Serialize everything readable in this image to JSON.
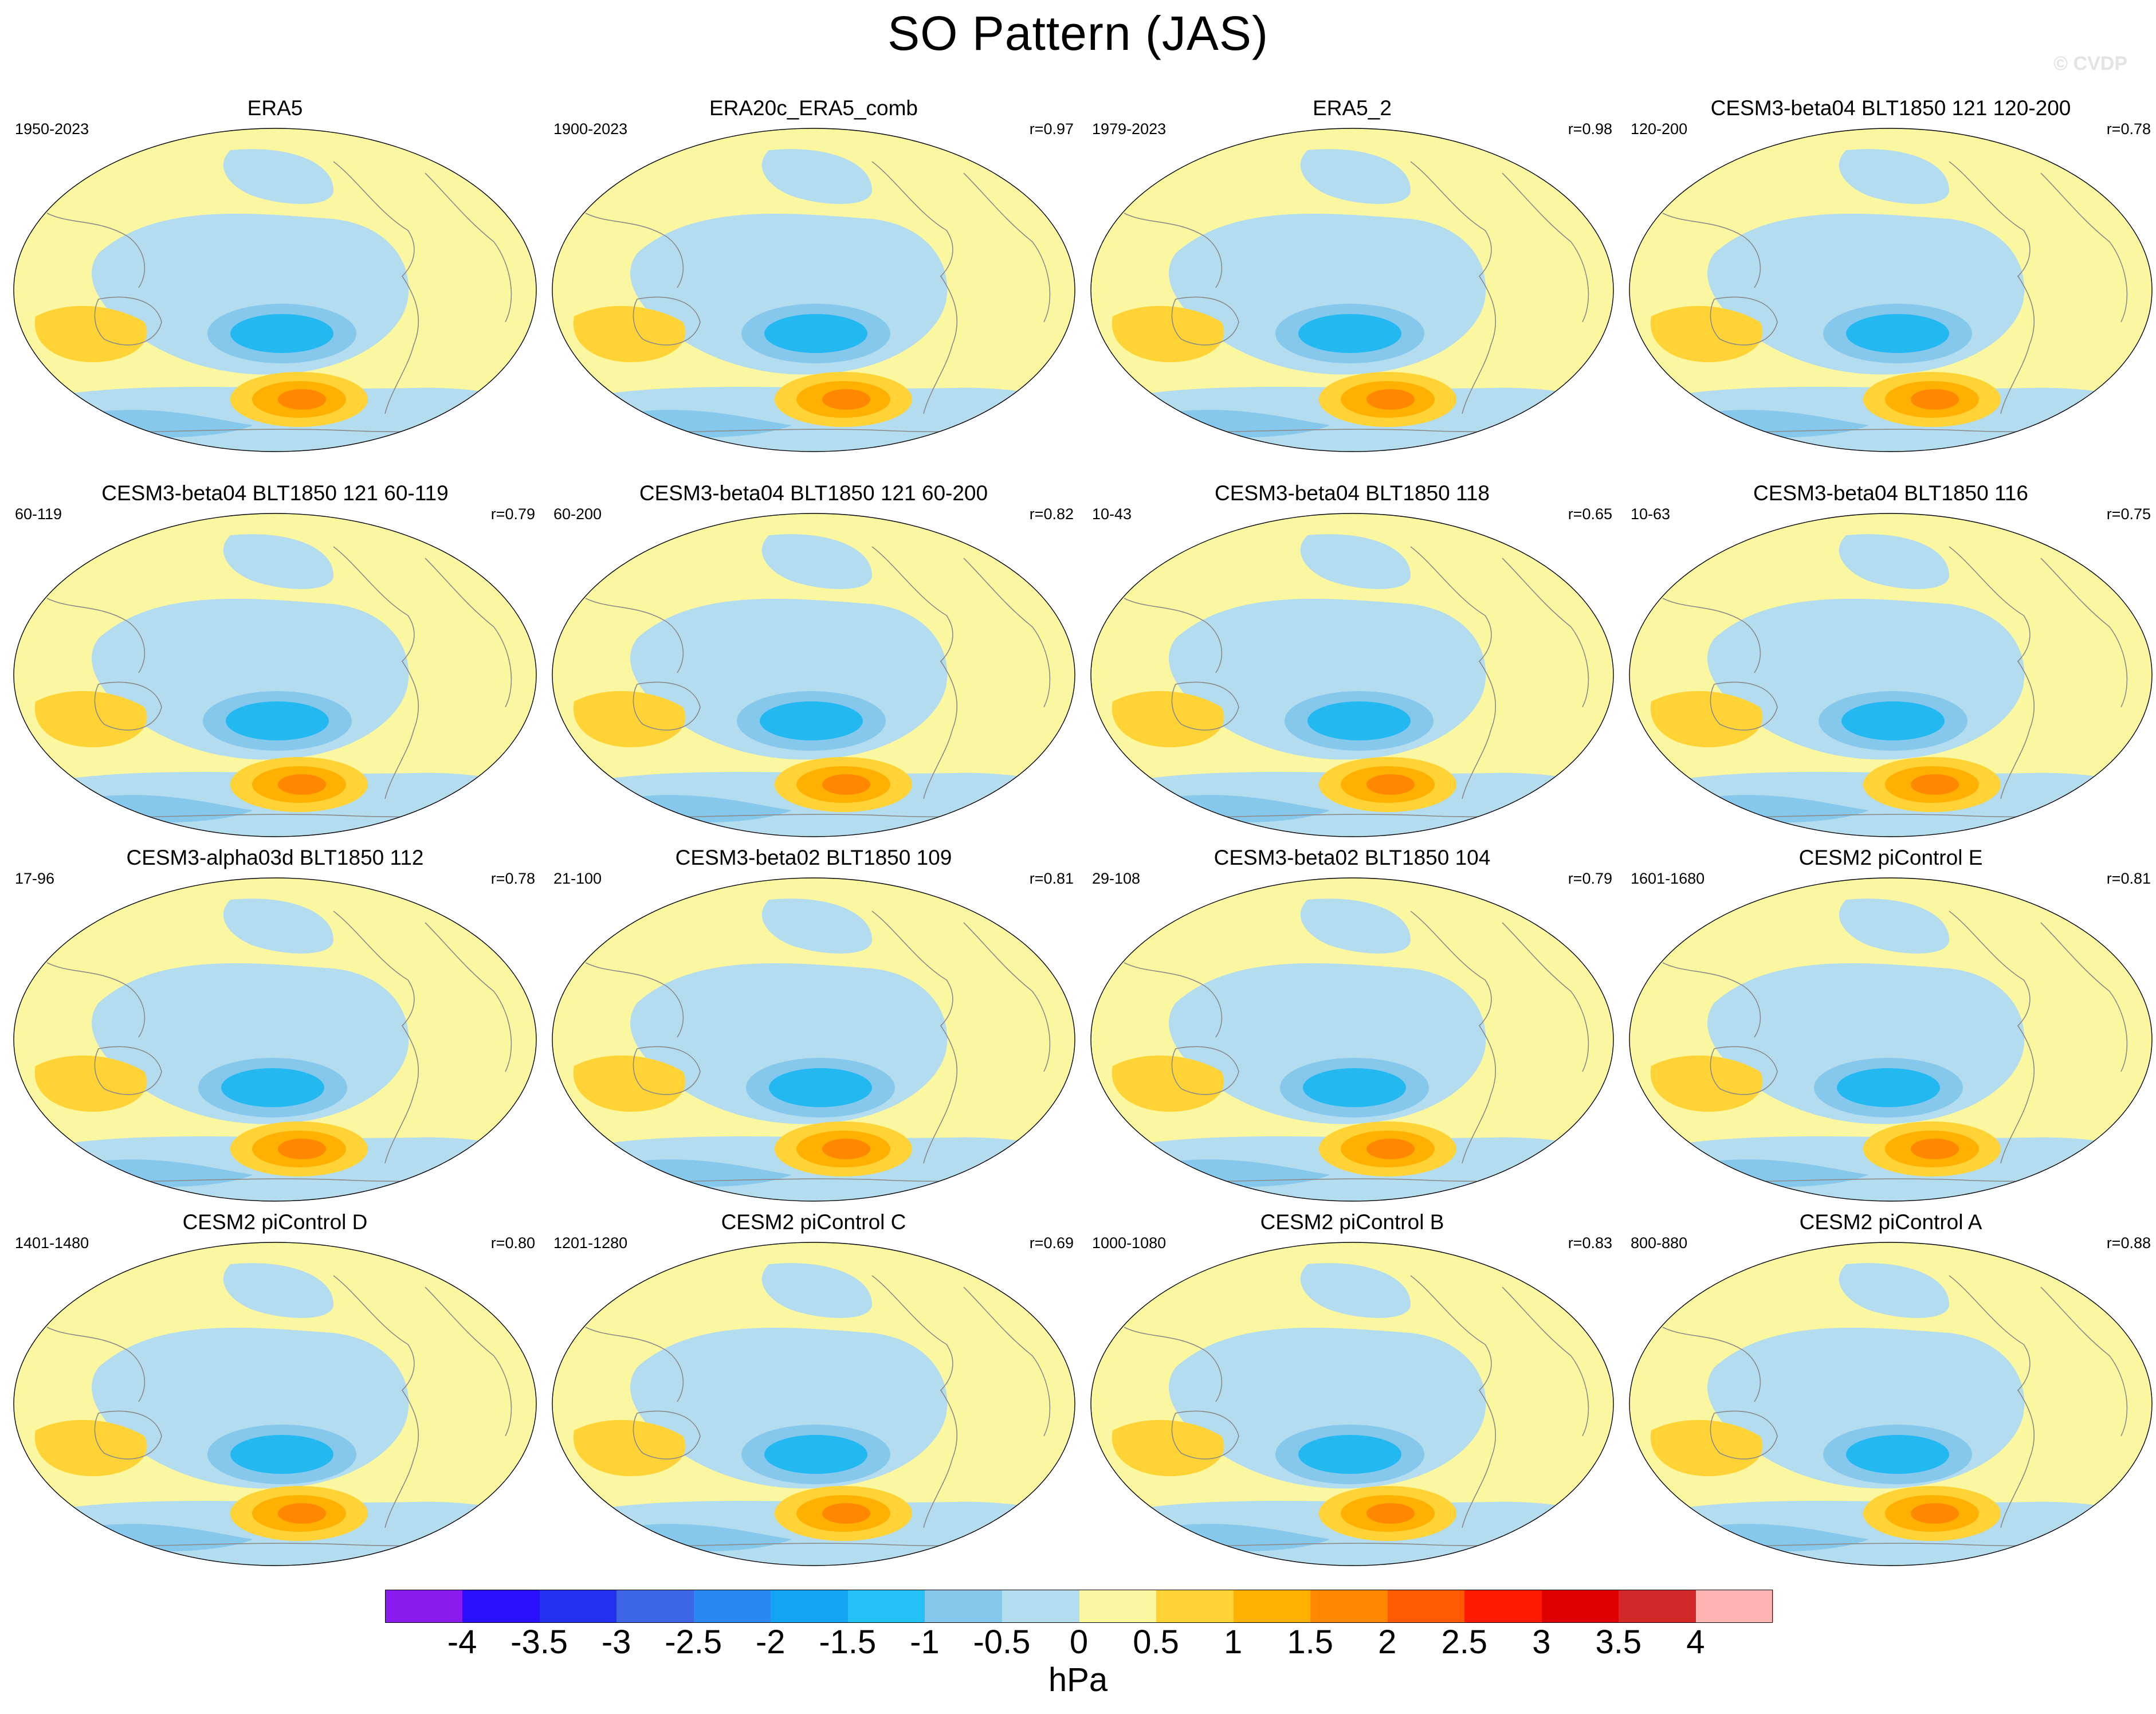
{
  "title": "SO Pattern (JAS)",
  "watermark": "© CVDP",
  "colors": {
    "ocean_neutral": "#fbf7a0",
    "weak_neg": "#b4dcef",
    "mid_neg": "#86c8ec",
    "strong_neg": "#24b8f0",
    "weak_pos": "#ffd335",
    "mid_pos": "#ffb000",
    "strong_pos": "#ff8800",
    "coastline": "#8a8a8a"
  },
  "panels": [
    {
      "title": "ERA5",
      "period": "1950-2023",
      "r": ""
    },
    {
      "title": "ERA20c_ERA5_comb",
      "period": "1900-2023",
      "r": "r=0.97"
    },
    {
      "title": "ERA5_2",
      "period": "1979-2023",
      "r": "r=0.98"
    },
    {
      "title": "CESM3-beta04 BLT1850 121 120-200",
      "period": "120-200",
      "r": "r=0.78"
    },
    {
      "title": "CESM3-beta04 BLT1850 121 60-119",
      "period": "60-119",
      "r": "r=0.79"
    },
    {
      "title": "CESM3-beta04 BLT1850 121 60-200",
      "period": "60-200",
      "r": "r=0.82"
    },
    {
      "title": "CESM3-beta04 BLT1850 118",
      "period": "10-43",
      "r": "r=0.65"
    },
    {
      "title": "CESM3-beta04 BLT1850 116",
      "period": "10-63",
      "r": "r=0.75"
    },
    {
      "title": "CESM3-alpha03d BLT1850 112",
      "period": "17-96",
      "r": "r=0.78"
    },
    {
      "title": "CESM3-beta02 BLT1850 109",
      "period": "21-100",
      "r": "r=0.81"
    },
    {
      "title": "CESM3-beta02 BLT1850 104",
      "period": "29-108",
      "r": "r=0.79"
    },
    {
      "title": "CESM2 piControl E",
      "period": "1601-1680",
      "r": "r=0.81"
    },
    {
      "title": "CESM2 piControl D",
      "period": "1401-1480",
      "r": "r=0.80"
    },
    {
      "title": "CESM2 piControl C",
      "period": "1201-1280",
      "r": "r=0.69"
    },
    {
      "title": "CESM2 piControl B",
      "period": "1000-1080",
      "r": "r=0.83"
    },
    {
      "title": "CESM2 piControl A",
      "period": "800-880",
      "r": "r=0.88"
    }
  ],
  "colorbar": {
    "colors": [
      "#8a1cf0",
      "#2a10ff",
      "#2430f0",
      "#3c66e6",
      "#2a88f4",
      "#14a4f4",
      "#24c0f8",
      "#86c8ec",
      "#b4dcef",
      "#fbf7a0",
      "#ffd335",
      "#ffb000",
      "#ff8800",
      "#ff5a00",
      "#ff1a00",
      "#dc0000",
      "#d22828",
      "#ffb4b4"
    ],
    "ticks": [
      "-4",
      "-3.5",
      "-3",
      "-2.5",
      "-2",
      "-1.5",
      "-1",
      "-0.5",
      "0",
      "0.5",
      "1",
      "1.5",
      "2",
      "2.5",
      "3",
      "3.5",
      "4"
    ],
    "units": "hPa"
  }
}
